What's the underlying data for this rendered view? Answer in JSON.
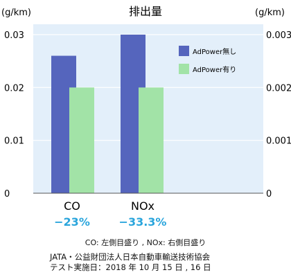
{
  "chart_data": {
    "type": "bar",
    "title": "排出量",
    "ylabel_left": "(g/km)",
    "ylabel_right": "(g/km)",
    "categories": [
      "CO",
      "NOx"
    ],
    "series": [
      {
        "name": "AdPower無し",
        "values": [
          0.026,
          0.03
        ],
        "color": "#5565bd"
      },
      {
        "name": "AdPower有り",
        "values": [
          0.02,
          0.02
        ],
        "color": "#a2e3a7"
      }
    ],
    "reduction_labels": [
      "−23%",
      "−33.3%"
    ],
    "reduction_color": "#2aa5dc",
    "ylim": [
      0,
      0.03
    ],
    "yticks_left": [
      "0",
      "0.01",
      "0.02",
      "0.03"
    ],
    "yticks_right": [
      "0",
      "0.001",
      "0.002",
      "0.003"
    ],
    "legend_position": "top-right",
    "plot_background": "#e3effa",
    "grid": true
  },
  "axis_note": "CO: 左側目盛り , NOx: 右側目盛り",
  "source_line1": "JATA・公益財団法人日本自動車輸送技術協会",
  "source_line2": "テスト実施日：2018 年 10 月 15 日 , 16 日"
}
